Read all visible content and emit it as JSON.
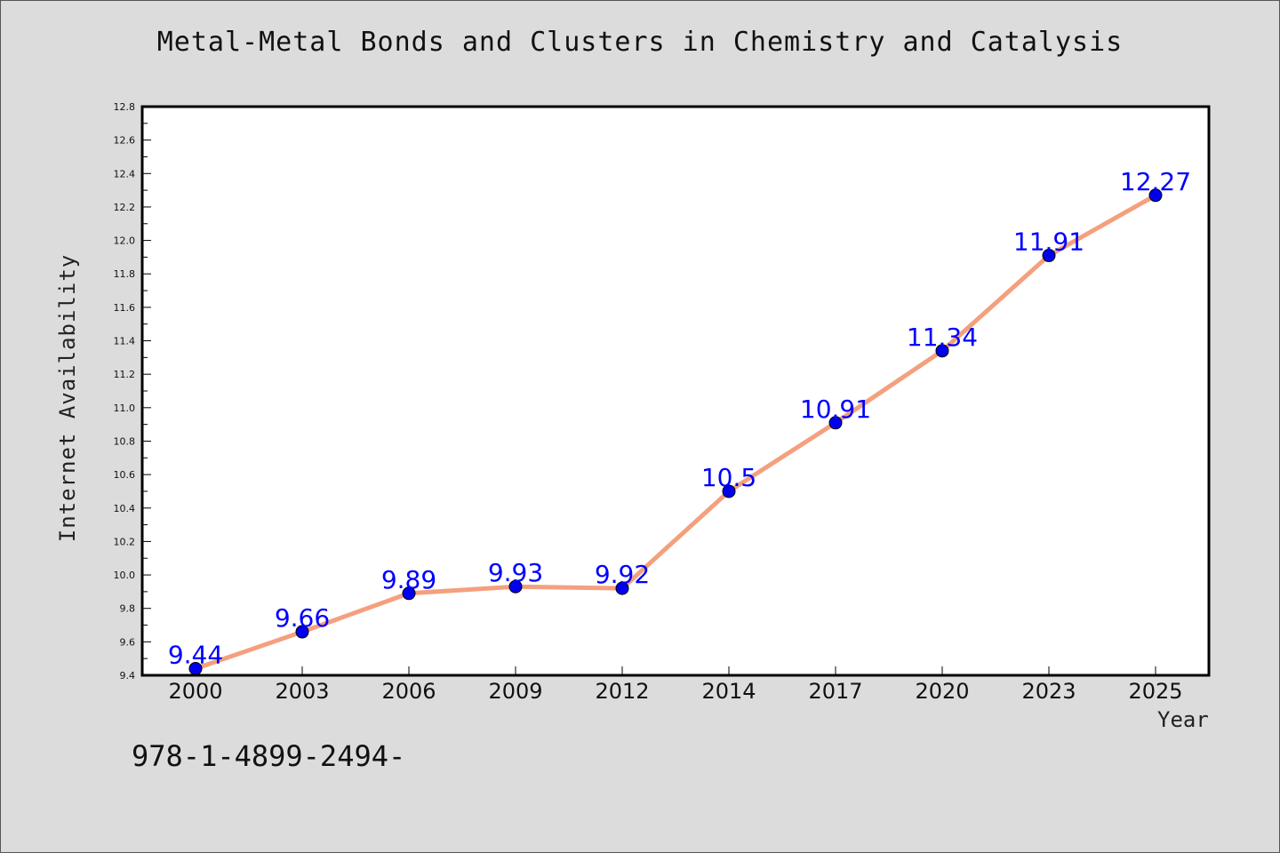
{
  "chart_data": {
    "type": "line",
    "title": "Metal-Metal Bonds and Clusters in Chemistry and Catalysis",
    "xlabel": "Year",
    "ylabel": "Internet Availability",
    "categories": [
      "2000",
      "2003",
      "2006",
      "2009",
      "2012",
      "2014",
      "2017",
      "2020",
      "2023",
      "2025"
    ],
    "values": [
      9.44,
      9.66,
      9.89,
      9.93,
      9.92,
      10.5,
      10.91,
      11.34,
      11.91,
      12.27
    ],
    "data_labels": [
      "9.44",
      "9.66",
      "9.89",
      "9.93",
      "9.92",
      "10.5",
      "10.91",
      "11.34",
      "11.91",
      "12.27"
    ],
    "ylim": [
      9.4,
      12.8
    ],
    "yticks": [
      "9.4",
      "9.6",
      "9.8",
      "10.0",
      "10.2",
      "10.4",
      "10.6",
      "10.8",
      "11.0",
      "11.2",
      "11.4",
      "11.6",
      "11.8",
      "12.0",
      "12.2",
      "12.4",
      "12.6",
      "12.8"
    ],
    "grid": false,
    "line_color": "#f4a07e",
    "marker_color": "#0000ee",
    "label_color": "#0000ff",
    "background_color": "#dcdcdc",
    "plot_background": "#ffffff"
  },
  "footnote": "978-1-4899-2494-"
}
